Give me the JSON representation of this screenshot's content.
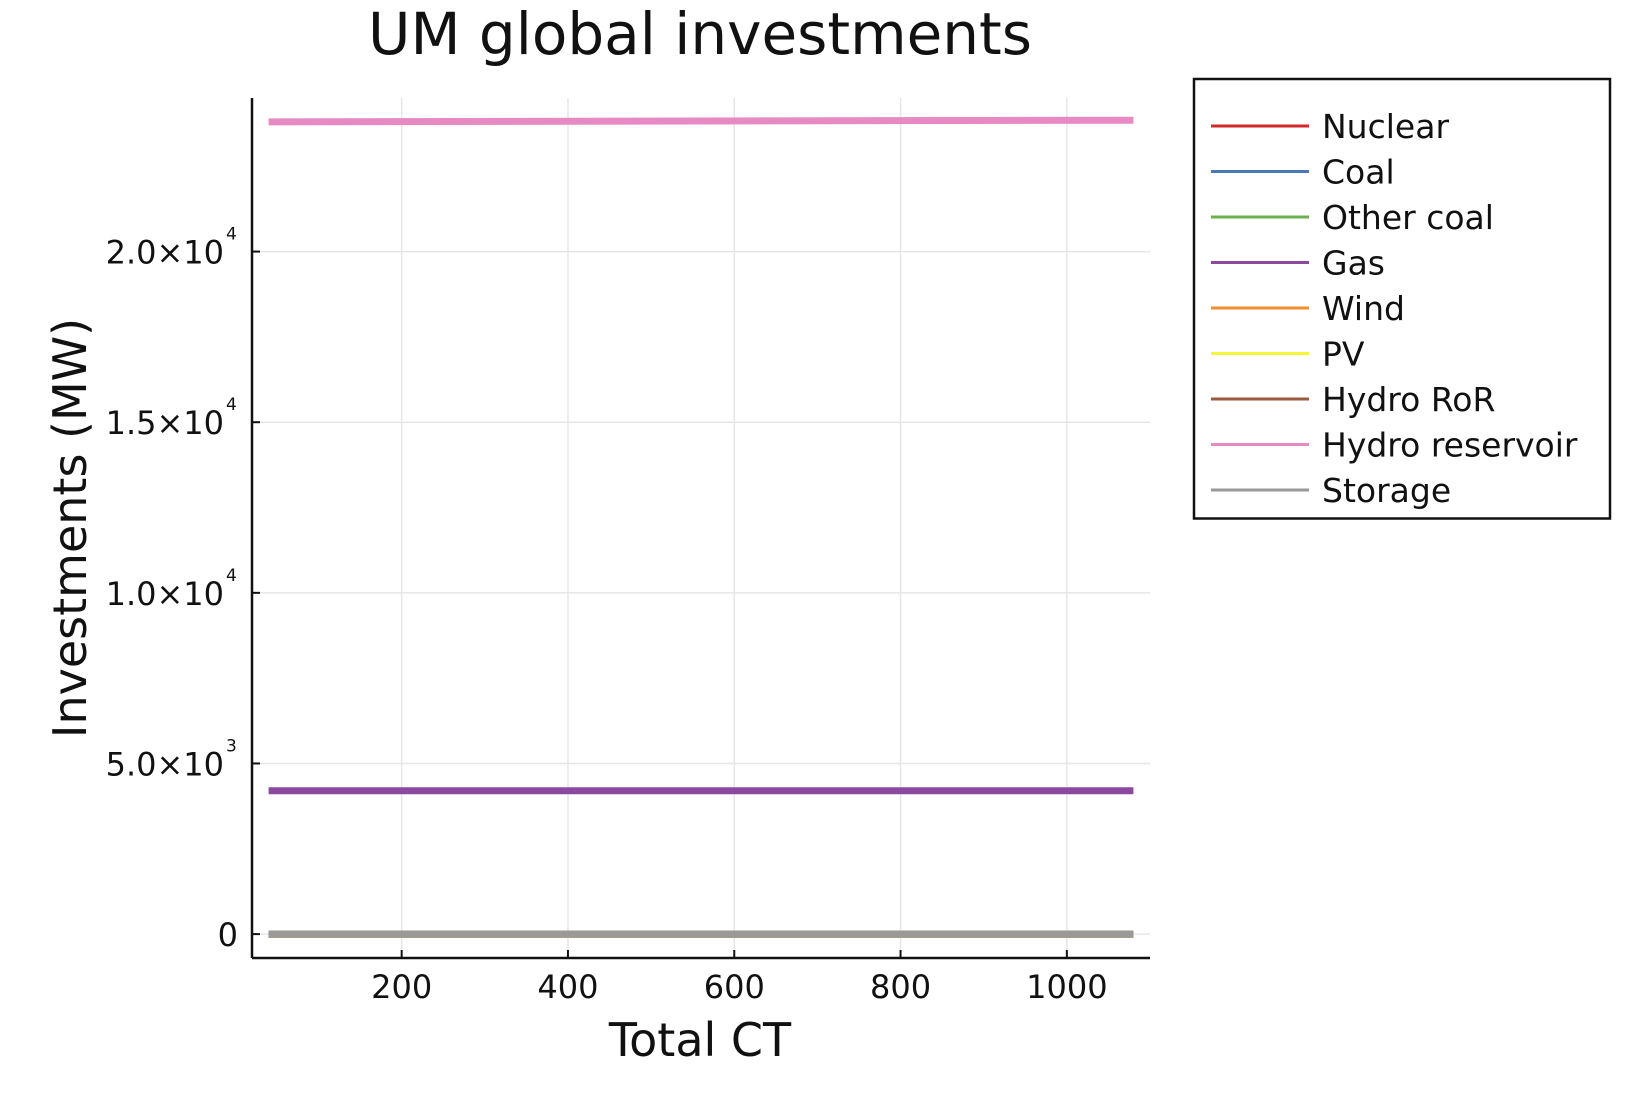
{
  "chart_data": {
    "type": "line",
    "title": "UM global investments",
    "xlabel": "Total CT",
    "ylabel": "Investments (MW)",
    "xlim": [
      20,
      1100
    ],
    "ylim": [
      -700,
      24500
    ],
    "x_ticks": [
      {
        "value": 200,
        "label": "200"
      },
      {
        "value": 400,
        "label": "400"
      },
      {
        "value": 600,
        "label": "600"
      },
      {
        "value": 800,
        "label": "800"
      },
      {
        "value": 1000,
        "label": "1000"
      }
    ],
    "y_ticks": [
      {
        "value": 0,
        "mantissa": "0",
        "exponent": ""
      },
      {
        "value": 5000,
        "mantissa": "5.0×10",
        "exponent": "3"
      },
      {
        "value": 10000,
        "mantissa": "1.0×10",
        "exponent": "4"
      },
      {
        "value": 15000,
        "mantissa": "1.5×10",
        "exponent": "4"
      },
      {
        "value": 20000,
        "mantissa": "2.0×10",
        "exponent": "4"
      }
    ],
    "grid": true,
    "legend_position": "outside-top-right",
    "x": [
      40,
      1080
    ],
    "series": [
      {
        "name": "Nuclear",
        "color": "#d62728",
        "values": [
          0,
          0
        ]
      },
      {
        "name": "Coal",
        "color": "#4c78b6",
        "values": [
          0,
          0
        ]
      },
      {
        "name": "Other coal",
        "color": "#6ab04c",
        "values": [
          0,
          0
        ]
      },
      {
        "name": "Gas",
        "color": "#8b4a9f",
        "values": [
          4200,
          4200
        ]
      },
      {
        "name": "Wind",
        "color": "#f28e2b",
        "values": [
          0,
          0
        ]
      },
      {
        "name": "PV",
        "color": "#f5f53a",
        "values": [
          0,
          0
        ]
      },
      {
        "name": "Hydro RoR",
        "color": "#9c5a3c",
        "values": [
          0,
          0
        ]
      },
      {
        "name": "Hydro reservoir",
        "color": "#e78ac3",
        "values": [
          23800,
          23850
        ]
      },
      {
        "name": "Storage",
        "color": "#999999",
        "values": [
          0,
          0
        ]
      }
    ]
  }
}
